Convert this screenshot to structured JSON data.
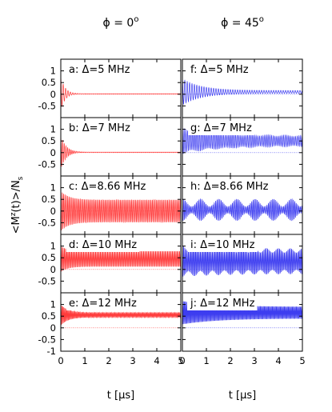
{
  "chart_data": {
    "type": "line",
    "column_titles": [
      "ϕ = 0°",
      "ϕ = 45°"
    ],
    "ylabel": "<M^z(t)>/N_s",
    "xlabel": "t [μs]",
    "xlim": [
      0,
      5
    ],
    "ylim": [
      -1,
      1.5
    ],
    "xticks": [
      0,
      1,
      2,
      3,
      4,
      5
    ],
    "yticks": [
      -1,
      -0.5,
      0,
      0.5,
      1
    ],
    "yticks_labeled": [
      -0.5,
      0,
      0.5,
      1
    ],
    "yticks_labeled_bottom": [
      -1,
      -0.5,
      0,
      0.5,
      1
    ],
    "panels": [
      {
        "label": "a: Δ=5 MHz",
        "row": 0,
        "col": 0,
        "color": "#ff3b3b",
        "offset": 0.02,
        "amp0": 0.72,
        "amp_final": 0.0,
        "decay_us": 0.18,
        "freq_mhz": 10.0,
        "mod_amp": 0.0,
        "mod_freq_mhz": 0.0
      },
      {
        "label": "b: Δ=7 MHz",
        "row": 1,
        "col": 0,
        "color": "#ff3b3b",
        "offset": 0.02,
        "amp0": 0.72,
        "amp_final": 0.0,
        "decay_us": 0.22,
        "freq_mhz": 14.0,
        "mod_amp": 0.0,
        "mod_freq_mhz": 0.0
      },
      {
        "label": "c: Δ=8.66 MHz",
        "row": 2,
        "col": 0,
        "color": "#ff3b3b",
        "offset": 0.0,
        "amp0": 0.85,
        "amp_final": 0.48,
        "decay_us": 0.35,
        "freq_mhz": 17.3,
        "mod_amp": 0.0,
        "mod_freq_mhz": 0.0
      },
      {
        "label": "d: Δ=10 MHz",
        "row": 3,
        "col": 0,
        "color": "#ff3b3b",
        "offset": 0.45,
        "amp0": 0.55,
        "amp_final": 0.33,
        "decay_us": 0.3,
        "freq_mhz": 20.0,
        "mod_amp": 0.0,
        "mod_freq_mhz": 0.0
      },
      {
        "label": "e: Δ=12 MHz",
        "row": 4,
        "col": 0,
        "color": "#ff3b3b",
        "offset": 0.55,
        "amp0": 0.45,
        "amp_final": 0.1,
        "decay_us": 0.3,
        "freq_mhz": 24.0,
        "mod_amp": 0.0,
        "mod_freq_mhz": 0.0
      },
      {
        "label": "f: Δ=5 MHz",
        "row": 0,
        "col": 1,
        "color": "#3d3df0",
        "offset": 0.1,
        "amp0": 0.55,
        "amp_final": 0.06,
        "decay_us": 0.8,
        "freq_mhz": 10.0,
        "mod_amp": 0.0,
        "mod_freq_mhz": 0.0
      },
      {
        "label": "g: Δ=7 MHz",
        "row": 1,
        "col": 1,
        "color": "#3d3df0",
        "offset": 0.5,
        "amp0": 0.5,
        "amp_final": 0.2,
        "decay_us": 1.6,
        "freq_mhz": 14.0,
        "mod_amp": 0.12,
        "mod_freq_mhz": 1.4
      },
      {
        "label": "h: Δ=8.66 MHz",
        "row": 2,
        "col": 1,
        "color": "#3d3df0",
        "offset": 0.05,
        "amp0": 0.3,
        "amp_final": 0.3,
        "decay_us": 100,
        "freq_mhz": 17.3,
        "mod_amp": 0.55,
        "mod_freq_mhz": 1.32
      },
      {
        "label": "i: Δ=10 MHz",
        "row": 3,
        "col": 1,
        "color": "#3d3df0",
        "offset": 0.35,
        "amp0": 0.55,
        "amp_final": 0.45,
        "decay_us": 2.0,
        "freq_mhz": 20.0,
        "mod_amp": 0.2,
        "mod_freq_mhz": 2.0
      },
      {
        "label": "j: Δ=12 MHz",
        "row": 4,
        "col": 1,
        "color": "#3d3df0",
        "offset": 0.65,
        "amp0": 0.5,
        "amp_final": 0.25,
        "decay_us": 1.5,
        "freq_mhz": 24.0,
        "mod_amp": 0.0,
        "mod_freq_mhz": 0.0
      }
    ],
    "grid": false,
    "legend": "none"
  }
}
